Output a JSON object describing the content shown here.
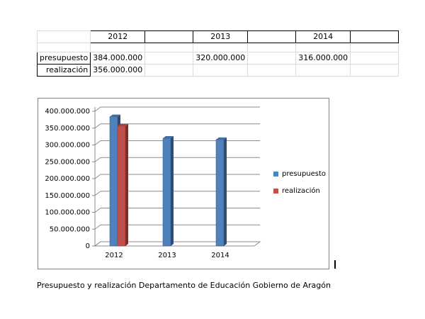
{
  "sheet": {
    "years": [
      "2012",
      "2013",
      "2014"
    ],
    "rows": [
      {
        "label": "presupuesto",
        "values": [
          "384.000.000",
          "320.000.000",
          "316.000.000"
        ]
      },
      {
        "label": "realización",
        "values": [
          "356.000.000",
          "",
          ""
        ]
      }
    ]
  },
  "chart_data": {
    "type": "bar",
    "categories": [
      "2012",
      "2013",
      "2014"
    ],
    "series": [
      {
        "name": "presupuesto",
        "color": "#4f81bd",
        "values": [
          384000000,
          320000000,
          316000000
        ]
      },
      {
        "name": "realización",
        "color": "#c0504d",
        "values": [
          356000000,
          null,
          null
        ]
      }
    ],
    "ylim": [
      0,
      400000000
    ],
    "yticks": [
      "0",
      "50.000.000",
      "100.000.000",
      "150.000.000",
      "200.000.000",
      "250.000.000",
      "300.000.000",
      "350.000.000",
      "400.000.000"
    ],
    "grid": true,
    "legend_position": "right",
    "style": "3d-bar"
  },
  "caption": "Presupuesto y realización Departamento de Educación Gobierno de Aragón"
}
